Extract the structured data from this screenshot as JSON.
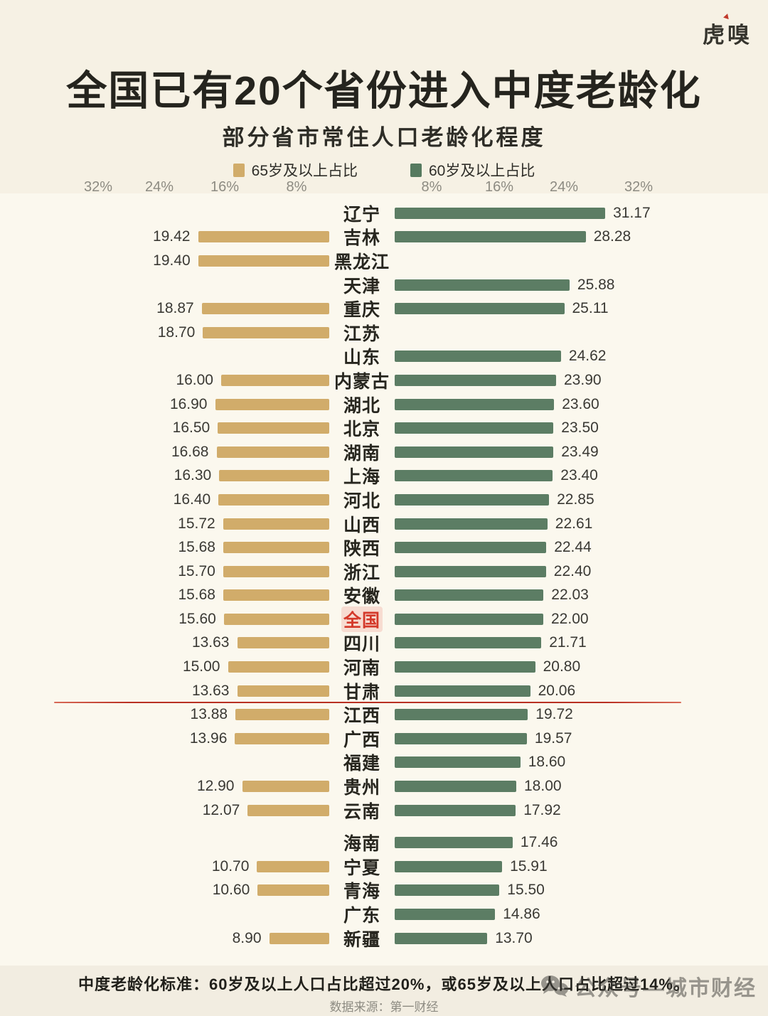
{
  "logo": "虎嗅",
  "header": {
    "title": "全国已有20个省份进入中度老龄化",
    "subtitle": "部分省市常住人口老龄化程度"
  },
  "legend": {
    "left_label": "65岁及以上占比",
    "left_color": "#d1ac6a",
    "right_label": "60岁及以上占比",
    "right_color": "#5c7d64"
  },
  "axis": {
    "left_ticks": [
      "32%",
      "24%",
      "16%",
      "8%"
    ],
    "right_ticks": [
      "8%",
      "16%",
      "24%",
      "32%"
    ]
  },
  "chart_data": {
    "type": "bar",
    "orientation": "diverging_horizontal",
    "unit": "%",
    "xlim": [
      0,
      33
    ],
    "x_ticks_percent": [
      8,
      16,
      24,
      32
    ],
    "legend_position": "top",
    "series_left_name": "65岁及以上占比",
    "series_right_name": "60岁及以上占比",
    "highlight_category": "全国",
    "threshold_line_after": "甘肃",
    "rows": [
      {
        "name": "辽宁",
        "left": null,
        "right": "31.17"
      },
      {
        "name": "吉林",
        "left": "19.42",
        "right": "28.28"
      },
      {
        "name": "黑龙江",
        "left": "19.40",
        "right": null
      },
      {
        "name": "天津",
        "left": null,
        "right": "25.88"
      },
      {
        "name": "重庆",
        "left": "18.87",
        "right": "25.11"
      },
      {
        "name": "江苏",
        "left": "18.70",
        "right": null
      },
      {
        "name": "山东",
        "left": null,
        "right": "24.62"
      },
      {
        "name": "内蒙古",
        "left": "16.00",
        "right": "23.90"
      },
      {
        "name": "湖北",
        "left": "16.90",
        "right": "23.60"
      },
      {
        "name": "北京",
        "left": "16.50",
        "right": "23.50"
      },
      {
        "name": "湖南",
        "left": "16.68",
        "right": "23.49"
      },
      {
        "name": "上海",
        "left": "16.30",
        "right": "23.40"
      },
      {
        "name": "河北",
        "left": "16.40",
        "right": "22.85"
      },
      {
        "name": "山西",
        "left": "15.72",
        "right": "22.61"
      },
      {
        "name": "陕西",
        "left": "15.68",
        "right": "22.44"
      },
      {
        "name": "浙江",
        "left": "15.70",
        "right": "22.40"
      },
      {
        "name": "安徽",
        "left": "15.68",
        "right": "22.03"
      },
      {
        "name": "全国",
        "left": "15.60",
        "right": "22.00",
        "highlight": true
      },
      {
        "name": "四川",
        "left": "13.63",
        "right": "21.71"
      },
      {
        "name": "河南",
        "left": "15.00",
        "right": "20.80"
      },
      {
        "name": "甘肃",
        "left": "13.63",
        "right": "20.06",
        "divider_after": true
      },
      {
        "name": "江西",
        "left": "13.88",
        "right": "19.72"
      },
      {
        "name": "广西",
        "left": "13.96",
        "right": "19.57"
      },
      {
        "name": "福建",
        "left": null,
        "right": "18.60"
      },
      {
        "name": "贵州",
        "left": "12.90",
        "right": "18.00"
      },
      {
        "name": "云南",
        "left": "12.07",
        "right": "17.92"
      },
      {
        "name": "海南",
        "left": null,
        "right": "17.46",
        "gap_before": true
      },
      {
        "name": "宁夏",
        "left": "10.70",
        "right": "15.91"
      },
      {
        "name": "青海",
        "left": "10.60",
        "right": "15.50"
      },
      {
        "name": "广东",
        "left": null,
        "right": "14.86"
      },
      {
        "name": "新疆",
        "left": "8.90",
        "right": "13.70"
      }
    ]
  },
  "footer": {
    "note": "中度老龄化标准：60岁及以上人口占比超过20%，或65岁及以上人口占比超过14%。",
    "source": "数据来源：第一财经"
  },
  "watermark": "公众号—城市财经"
}
